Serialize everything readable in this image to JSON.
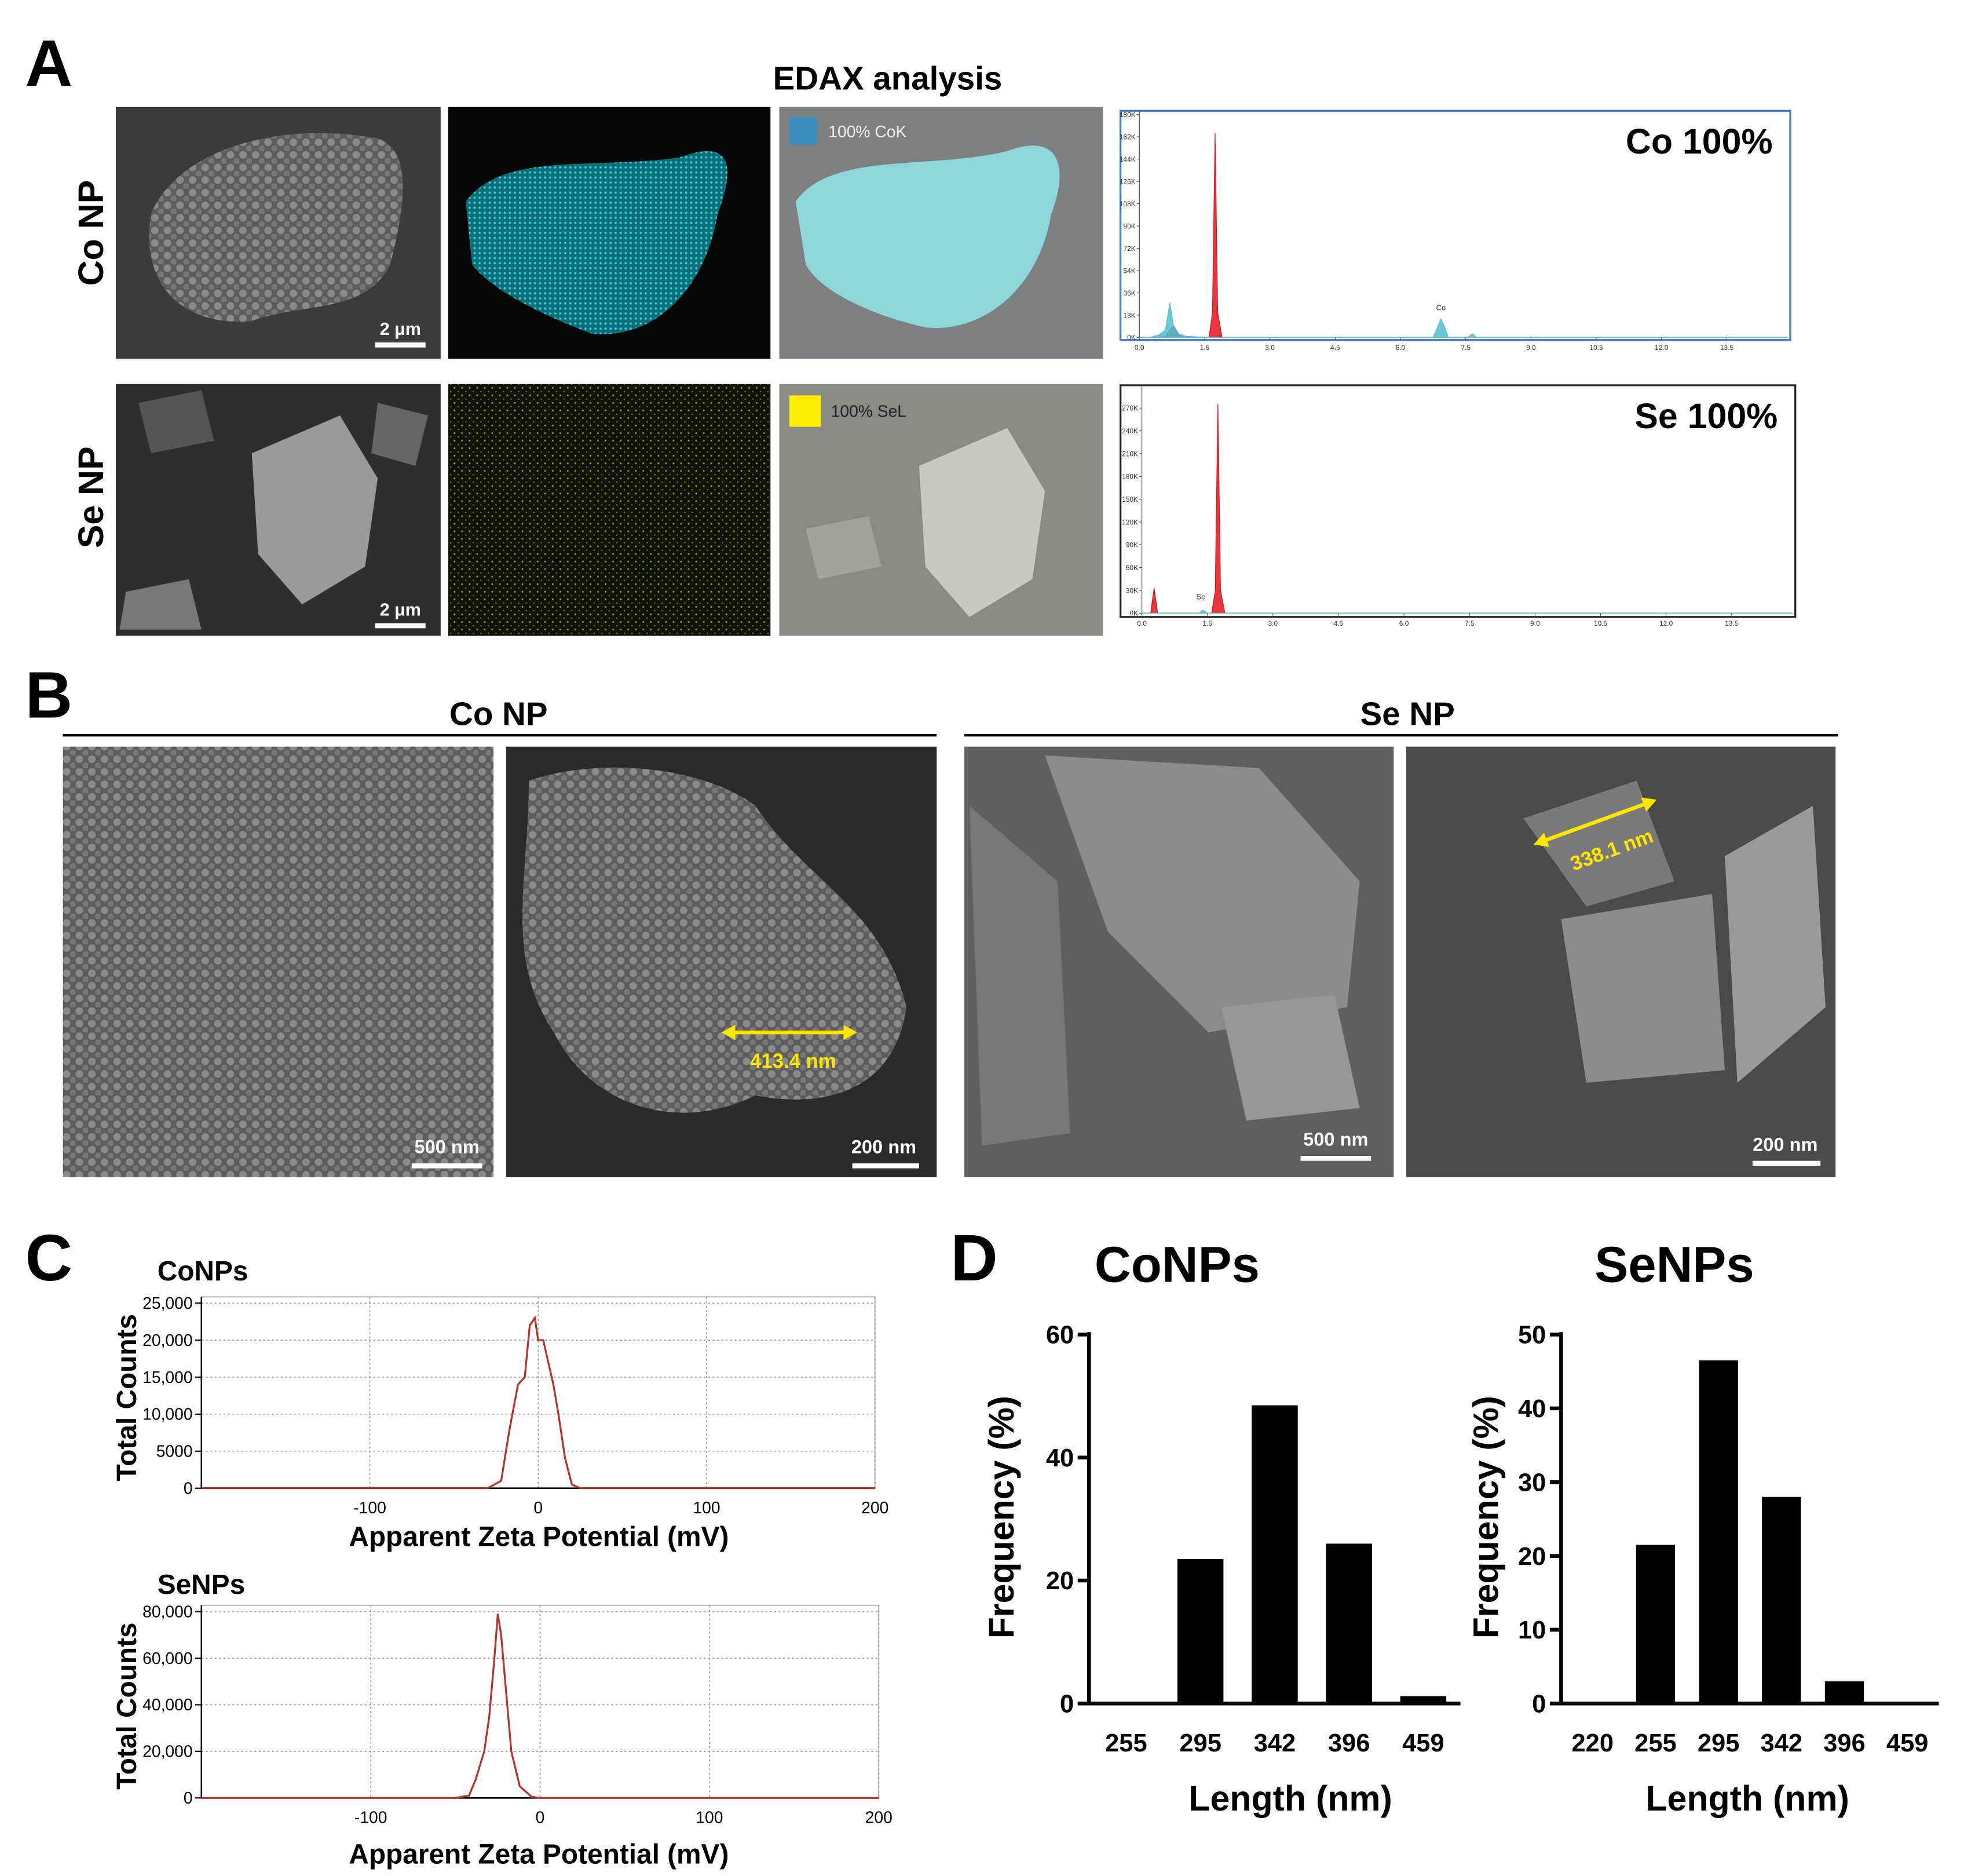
{
  "labels": {
    "a": "A",
    "b": "B",
    "c": "C",
    "d": "D"
  },
  "edax": {
    "title": "EDAX analysis",
    "rows": [
      {
        "label": "Co NP",
        "scale_bar": "2 μm",
        "map_legend": "100% CoK"
      },
      {
        "label": "Se NP",
        "scale_bar": "2 μm",
        "map_legend": "100% SeL"
      }
    ]
  },
  "sem": {
    "groups": [
      {
        "label": "Co NP",
        "images": [
          {
            "scale_bar": "500 nm"
          },
          {
            "scale_bar": "200 nm",
            "measurement": "413.4 nm"
          }
        ]
      },
      {
        "label": "Se NP",
        "images": [
          {
            "scale_bar": "500 nm"
          },
          {
            "scale_bar": "200 nm",
            "measurement": "338.1 nm"
          }
        ]
      }
    ]
  },
  "chart_data": [
    {
      "type": "spectrum",
      "title": "Co 100%",
      "frame_color": "#3a78c9",
      "x": [
        0,
        0.25,
        0.45,
        0.6,
        0.7,
        0.78,
        0.9,
        1.05,
        1.6,
        1.68,
        1.74,
        1.8,
        1.9,
        6.75,
        6.85,
        6.93,
        7.02,
        7.1,
        7.55,
        7.65,
        7.75,
        14.9
      ],
      "series": [
        {
          "color": "#e0141c",
          "values": [
            0,
            0,
            0,
            1000,
            6000,
            9000,
            2000,
            0,
            0,
            20000,
            165000,
            20000,
            0,
            0,
            0,
            0,
            0,
            0,
            0,
            0,
            0,
            0
          ]
        },
        {
          "color": "#4fbfcf",
          "values": [
            0,
            0,
            2000,
            6000,
            28000,
            10000,
            3000,
            1000,
            0,
            0,
            0,
            0,
            0,
            0,
            8000,
            15000,
            8000,
            0,
            0,
            3000,
            0,
            0
          ]
        }
      ],
      "annotations": [
        {
          "text": "Co",
          "x": 6.93,
          "y": 22000
        }
      ],
      "xlim": [
        0,
        14.9
      ],
      "xticks": [
        {
          "value": 0,
          "label": "0.0"
        },
        1.5,
        {
          "value": 3,
          "label": "3.0"
        },
        4.5,
        {
          "value": 6,
          "label": "6.0"
        },
        7.5,
        {
          "value": 9,
          "label": "9.0"
        },
        10.5,
        {
          "value": 12,
          "label": "12.0"
        },
        13.5
      ],
      "ylim": [
        0,
        183000
      ],
      "yticks": [
        {
          "value": 0,
          "label": "0K"
        },
        {
          "value": 18000,
          "label": "18K"
        },
        {
          "value": 36000,
          "label": "36K"
        },
        {
          "value": 54000,
          "label": "54K"
        },
        {
          "value": 72000,
          "label": "72K"
        },
        {
          "value": 90000,
          "label": "90K"
        },
        {
          "value": 108000,
          "label": "108K"
        },
        {
          "value": 126000,
          "label": "126K"
        },
        {
          "value": 144000,
          "label": "144K"
        },
        {
          "value": 162000,
          "label": "162K"
        },
        {
          "value": 180000,
          "label": "180K"
        }
      ]
    },
    {
      "type": "spectrum",
      "title": "Se 100%",
      "frame_color": "#222222",
      "x": [
        0,
        0.2,
        0.28,
        0.36,
        0.5,
        1.3,
        1.4,
        1.5,
        1.6,
        1.68,
        1.74,
        1.8,
        1.9,
        14.9
      ],
      "series": [
        {
          "color": "#e0141c",
          "values": [
            0,
            0,
            33000,
            0,
            0,
            0,
            0,
            0,
            0,
            30000,
            275000,
            30000,
            0,
            0
          ]
        },
        {
          "color": "#4fbfcf",
          "values": [
            0,
            0,
            0,
            0,
            0,
            0,
            4000,
            0,
            0,
            0,
            0,
            0,
            0,
            0
          ]
        }
      ],
      "annotations": [
        {
          "text": "Se",
          "x": 1.35,
          "y": 18000
        }
      ],
      "xlim": [
        0,
        14.9
      ],
      "xticks": [
        {
          "value": 0,
          "label": "0.0"
        },
        1.5,
        {
          "value": 3,
          "label": "3.0"
        },
        4.5,
        {
          "value": 6,
          "label": "6.0"
        },
        7.5,
        {
          "value": 9,
          "label": "9.0"
        },
        10.5,
        {
          "value": 12,
          "label": "12.0"
        },
        13.5
      ],
      "ylim": [
        0,
        300000
      ],
      "yticks": [
        {
          "value": 0,
          "label": "0K"
        },
        {
          "value": 30000,
          "label": "30K"
        },
        {
          "value": 60000,
          "label": "60K"
        },
        {
          "value": 90000,
          "label": "90K"
        },
        {
          "value": 120000,
          "label": "120K"
        },
        {
          "value": 150000,
          "label": "150K"
        },
        {
          "value": 180000,
          "label": "180K"
        },
        {
          "value": 210000,
          "label": "210K"
        },
        {
          "value": 240000,
          "label": "240K"
        },
        {
          "value": 270000,
          "label": "270K"
        }
      ]
    },
    {
      "type": "line",
      "title": "CoNPs",
      "xlabel": "Apparent Zeta Potential (mV)",
      "ylabel": "Total Counts",
      "grid": true,
      "x": [
        -200,
        -30,
        -22,
        -17,
        -12,
        -8,
        -5,
        -2,
        0,
        3,
        6,
        9,
        12,
        16,
        20,
        25,
        200
      ],
      "series": [
        {
          "color": "#b5332a",
          "values": [
            0,
            0,
            1000,
            8000,
            14000,
            15000,
            22000,
            23000,
            20000,
            20000,
            17000,
            14000,
            10000,
            4000,
            500,
            0,
            0
          ]
        }
      ],
      "xlim": [
        -200,
        200
      ],
      "xticks": [
        -100,
        0,
        100,
        200
      ],
      "ylim": [
        0,
        25000
      ],
      "yticks": [
        0,
        5000,
        {
          "value": 10000,
          "label": "10,000"
        },
        {
          "value": 15000,
          "label": "15,000"
        },
        {
          "value": 20000,
          "label": "20,000"
        },
        {
          "value": 25000,
          "label": "25,000"
        }
      ]
    },
    {
      "type": "line",
      "title": "SeNPs",
      "xlabel": "Apparent Zeta Potential (mV)",
      "ylabel": "Total Counts",
      "grid": true,
      "x": [
        -200,
        -50,
        -42,
        -38,
        -33,
        -30,
        -27,
        -25,
        -23,
        -20,
        -17,
        -12,
        -5,
        0,
        200
      ],
      "series": [
        {
          "color": "#b5332a",
          "values": [
            0,
            0,
            1000,
            8000,
            20000,
            35000,
            60000,
            79000,
            70000,
            45000,
            20000,
            5000,
            500,
            0,
            0
          ]
        }
      ],
      "xlim": [
        -200,
        200
      ],
      "xticks": [
        -100,
        0,
        100,
        200
      ],
      "ylim": [
        0,
        80000
      ],
      "yticks": [
        0,
        {
          "value": 20000,
          "label": "20,000"
        },
        {
          "value": 40000,
          "label": "40,000"
        },
        {
          "value": 60000,
          "label": "60,000"
        },
        {
          "value": 80000,
          "label": "80,000"
        }
      ]
    },
    {
      "type": "bar",
      "title": "CoNPs",
      "xlabel": "Length (nm)",
      "ylabel": "Frequency (%)",
      "color": "#000000",
      "categories": [
        "255",
        "295",
        "342",
        "396",
        "459"
      ],
      "values": [
        0,
        23.5,
        48.5,
        26,
        1.2
      ],
      "ylim": [
        0,
        60
      ],
      "yticks": [
        0,
        20,
        40,
        60
      ]
    },
    {
      "type": "bar",
      "title": "SeNPs",
      "xlabel": "Length (nm)",
      "ylabel": "Frequency (%)",
      "color": "#000000",
      "categories": [
        "220",
        "255",
        "295",
        "342",
        "396",
        "459"
      ],
      "values": [
        0,
        21.5,
        46.5,
        28,
        3,
        0
      ],
      "ylim": [
        0,
        50
      ],
      "yticks": [
        0,
        10,
        20,
        30,
        40,
        50
      ]
    }
  ]
}
